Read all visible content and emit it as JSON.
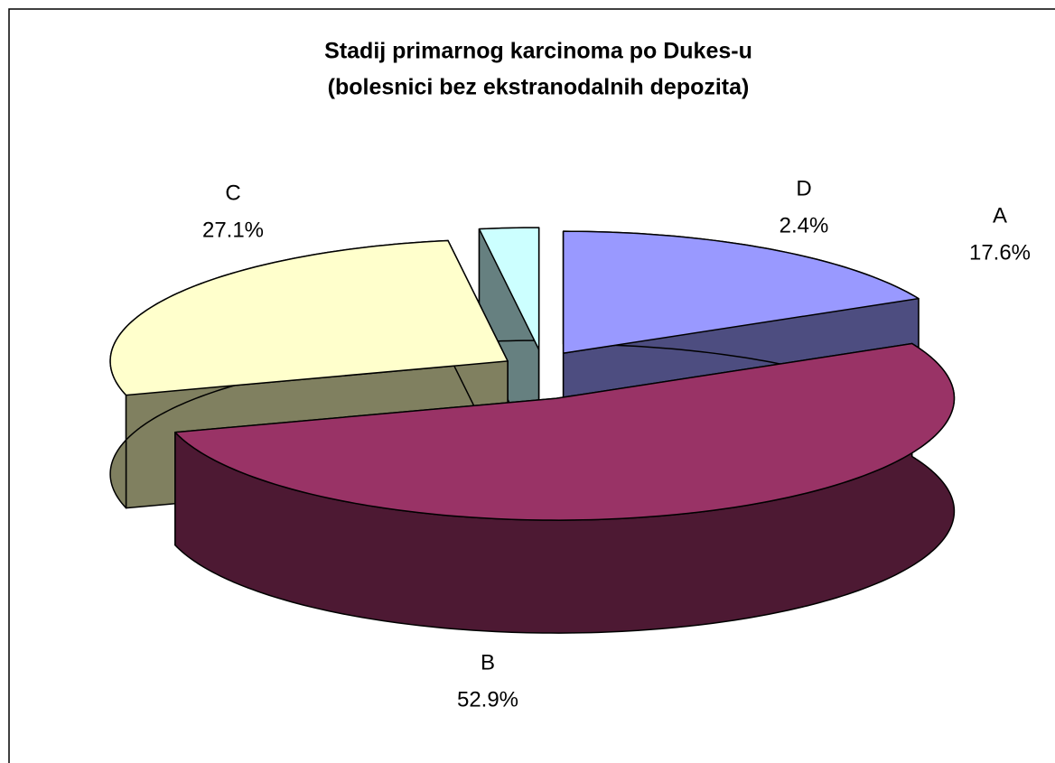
{
  "chart_data": {
    "type": "pie3d",
    "title": "Stadij primarnog karcinoma po Dukes-u",
    "subtitle": "(bolesnici bez ekstranodalnih depozita)",
    "categories": [
      "A",
      "B",
      "C",
      "D"
    ],
    "values": [
      17.6,
      52.9,
      27.1,
      2.4
    ],
    "value_labels": [
      "17.6%",
      "52.9%",
      "27.1%",
      "2.4%"
    ],
    "colors": [
      "#9999ff",
      "#993366",
      "#ffffcc",
      "#ccffff"
    ],
    "side_colors": [
      "#4d4d80",
      "#4d1933",
      "#808060",
      "#668080"
    ]
  }
}
